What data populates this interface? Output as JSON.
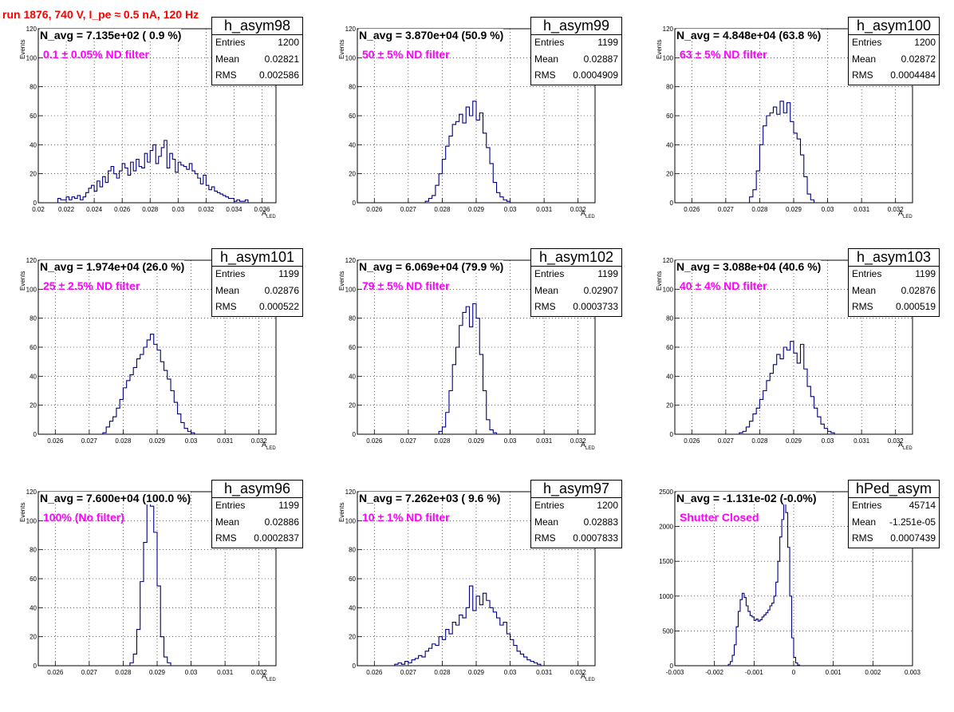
{
  "title": "run 1876,   740 V, I_pe ≈ 0.5 nA, 120 Hz",
  "stat_labels": {
    "entries": "Entries",
    "mean": "Mean",
    "rms": "RMS"
  },
  "colors": {
    "title": "#ff0000",
    "annotation": "#ff00ff",
    "histogram": "#00007f"
  },
  "chart_data": [
    {
      "type": "histogram",
      "name": "h_asym98",
      "navg": "N_avg = 7.135e+02 ( 0.9 %)",
      "filter": "0.1 ± 0.05% ND filter",
      "entries": "1200",
      "mean": "0.02821",
      "rms": "0.002586",
      "ylabel": "Events",
      "xlabel": "A",
      "xlabel_sub": "LED",
      "xlim": [
        0.02,
        0.037
      ],
      "ylim": [
        0,
        120
      ],
      "xticks": [
        "0.02",
        "0.022",
        "0.024",
        "0.026",
        "0.028",
        "0.03",
        "0.032",
        "0.034",
        "0.036"
      ],
      "xtick_values": [
        0.02,
        0.022,
        0.024,
        0.026,
        0.028,
        0.03,
        0.032,
        0.034,
        0.036
      ],
      "yticks": [
        "0",
        "20",
        "40",
        "60",
        "80",
        "100",
        "120"
      ],
      "bin_start": 0.0214,
      "bin_width": 0.0002,
      "counts": [
        3,
        2,
        2,
        4,
        2,
        4,
        3,
        5,
        2,
        4,
        7,
        10,
        12,
        8,
        15,
        11,
        18,
        14,
        22,
        25,
        20,
        17,
        22,
        27,
        24,
        19,
        28,
        22,
        30,
        25,
        24,
        34,
        28,
        36,
        40,
        27,
        32,
        38,
        43,
        24,
        34,
        30,
        21,
        28,
        26,
        25,
        23,
        27,
        22,
        20,
        17,
        13,
        19,
        12,
        9,
        11,
        8,
        7,
        6,
        5,
        4,
        3,
        3,
        1,
        2,
        1,
        1,
        2
      ]
    },
    {
      "type": "histogram",
      "name": "h_asym99",
      "navg": "N_avg = 3.870e+04 (50.9 %)",
      "filter": "50 ± 5% ND filter",
      "entries": "1199",
      "mean": "0.02887",
      "rms": "0.0004909",
      "ylabel": "Events",
      "xlabel": "A",
      "xlabel_sub": "LED",
      "xlim": [
        0.0255,
        0.0325
      ],
      "ylim": [
        0,
        120
      ],
      "xticks": [
        "0.026",
        "0.027",
        "0.028",
        "0.029",
        "0.03",
        "0.031",
        "0.032"
      ],
      "xtick_values": [
        0.026,
        0.027,
        0.028,
        0.029,
        0.03,
        0.031,
        0.032
      ],
      "yticks": [
        "0",
        "20",
        "40",
        "60",
        "80",
        "100",
        "120"
      ],
      "bin_start": 0.0275,
      "bin_width": 0.0001,
      "counts": [
        1,
        3,
        5,
        12,
        20,
        30,
        39,
        46,
        54,
        56,
        61,
        55,
        66,
        60,
        70,
        57,
        62,
        48,
        38,
        27,
        14,
        7,
        4,
        2,
        1
      ]
    },
    {
      "type": "histogram",
      "name": "h_asym100",
      "navg": "N_avg = 4.848e+04 (63.8 %)",
      "filter": "63 ± 5% ND filter",
      "entries": "1200",
      "mean": "0.02872",
      "rms": "0.0004484",
      "ylabel": "Events",
      "xlabel": "A",
      "xlabel_sub": "LED",
      "xlim": [
        0.0255,
        0.0325
      ],
      "ylim": [
        0,
        120
      ],
      "xticks": [
        "0.026",
        "0.027",
        "0.028",
        "0.029",
        "0.03",
        "0.031",
        "0.032"
      ],
      "xtick_values": [
        0.026,
        0.027,
        0.028,
        0.029,
        0.03,
        0.031,
        0.032
      ],
      "yticks": [
        "0",
        "20",
        "40",
        "60",
        "80",
        "100",
        "120"
      ],
      "bin_start": 0.0277,
      "bin_width": 0.0001,
      "counts": [
        4,
        9,
        22,
        40,
        53,
        60,
        62,
        66,
        61,
        70,
        62,
        69,
        56,
        48,
        44,
        33,
        18,
        6,
        2
      ]
    },
    {
      "type": "histogram",
      "name": "h_asym101",
      "navg": "N_avg = 1.974e+04 (26.0 %)",
      "filter": "25 ± 2.5% ND filter",
      "entries": "1199",
      "mean": "0.02876",
      "rms": "0.000522",
      "ylabel": "Events",
      "xlabel": "A",
      "xlabel_sub": "LED",
      "xlim": [
        0.0255,
        0.0325
      ],
      "ylim": [
        0,
        120
      ],
      "xticks": [
        "0.026",
        "0.027",
        "0.028",
        "0.029",
        "0.03",
        "0.031",
        "0.032"
      ],
      "xtick_values": [
        0.026,
        0.027,
        0.028,
        0.029,
        0.03,
        0.031,
        0.032
      ],
      "yticks": [
        "0",
        "20",
        "40",
        "60",
        "80",
        "100",
        "120"
      ],
      "bin_start": 0.0274,
      "bin_width": 0.0001,
      "counts": [
        1,
        5,
        9,
        12,
        18,
        24,
        32,
        37,
        41,
        46,
        52,
        55,
        60,
        65,
        69,
        62,
        58,
        50,
        44,
        38,
        30,
        22,
        14,
        8,
        4,
        2,
        1
      ]
    },
    {
      "type": "histogram",
      "name": "h_asym102",
      "navg": "N_avg = 6.069e+04 (79.9 %)",
      "filter": "79 ± 5% ND filter",
      "entries": "1199",
      "mean": "0.02907",
      "rms": "0.0003733",
      "ylabel": "Events",
      "xlabel": "A",
      "xlabel_sub": "LED",
      "xlim": [
        0.0255,
        0.0325
      ],
      "ylim": [
        0,
        120
      ],
      "xticks": [
        "0.026",
        "0.027",
        "0.028",
        "0.029",
        "0.03",
        "0.031",
        "0.032"
      ],
      "xtick_values": [
        0.026,
        0.027,
        0.028,
        0.029,
        0.03,
        0.031,
        0.032
      ],
      "yticks": [
        "0",
        "20",
        "40",
        "60",
        "80",
        "100",
        "120"
      ],
      "bin_start": 0.0279,
      "bin_width": 0.0001,
      "counts": [
        2,
        5,
        15,
        30,
        48,
        60,
        75,
        84,
        88,
        74,
        90,
        80,
        55,
        30,
        10,
        3,
        1
      ]
    },
    {
      "type": "histogram",
      "name": "h_asym103",
      "navg": "N_avg = 3.088e+04 (40.6 %)",
      "filter": "40 ± 4% ND filter",
      "entries": "1199",
      "mean": "0.02876",
      "rms": "0.000519",
      "ylabel": "Events",
      "xlabel": "A",
      "xlabel_sub": "LED",
      "xlim": [
        0.0255,
        0.0325
      ],
      "ylim": [
        0,
        120
      ],
      "xticks": [
        "0.026",
        "0.027",
        "0.028",
        "0.029",
        "0.03",
        "0.031",
        "0.032"
      ],
      "xtick_values": [
        0.026,
        0.027,
        0.028,
        0.029,
        0.03,
        0.031,
        0.032
      ],
      "yticks": [
        "0",
        "20",
        "40",
        "60",
        "80",
        "100",
        "120"
      ],
      "bin_start": 0.0274,
      "bin_width": 0.0001,
      "counts": [
        1,
        2,
        5,
        9,
        14,
        18,
        24,
        30,
        37,
        42,
        48,
        55,
        52,
        60,
        58,
        64,
        56,
        49,
        62,
        45,
        33,
        26,
        18,
        12,
        7,
        4,
        2,
        1
      ]
    },
    {
      "type": "histogram",
      "name": "h_asym96",
      "navg": "N_avg = 7.600e+04 (100.0 %)",
      "filter": "100% (No filter)",
      "entries": "1199",
      "mean": "0.02886",
      "rms": "0.0002837",
      "ylabel": "Events",
      "xlabel": "A",
      "xlabel_sub": "LED",
      "xlim": [
        0.0255,
        0.0325
      ],
      "ylim": [
        0,
        120
      ],
      "xticks": [
        "0.026",
        "0.027",
        "0.028",
        "0.029",
        "0.03",
        "0.031",
        "0.032"
      ],
      "xtick_values": [
        0.026,
        0.027,
        0.028,
        0.029,
        0.03,
        0.031,
        0.032
      ],
      "yticks": [
        "0",
        "20",
        "40",
        "60",
        "80",
        "100",
        "120"
      ],
      "bin_start": 0.0282,
      "bin_width": 0.0001,
      "counts": [
        2,
        8,
        25,
        58,
        85,
        118,
        110,
        92,
        55,
        20,
        6,
        2
      ]
    },
    {
      "type": "histogram",
      "name": "h_asym97",
      "navg": "N_avg = 7.262e+03 ( 9.6 %)",
      "filter": "10 ± 1% ND filter",
      "entries": "1200",
      "mean": "0.02883",
      "rms": "0.0007833",
      "ylabel": "Events",
      "xlabel": "A",
      "xlabel_sub": "LED",
      "xlim": [
        0.0255,
        0.0325
      ],
      "ylim": [
        0,
        120
      ],
      "xticks": [
        "0.026",
        "0.027",
        "0.028",
        "0.029",
        "0.03",
        "0.031",
        "0.032"
      ],
      "xtick_values": [
        0.026,
        0.027,
        0.028,
        0.029,
        0.03,
        0.031,
        0.032
      ],
      "yticks": [
        "0",
        "20",
        "40",
        "60",
        "80",
        "100",
        "120"
      ],
      "bin_start": 0.0266,
      "bin_width": 0.0001,
      "counts": [
        1,
        2,
        1,
        3,
        2,
        4,
        5,
        7,
        6,
        10,
        12,
        15,
        14,
        20,
        18,
        25,
        22,
        30,
        28,
        35,
        33,
        40,
        55,
        38,
        48,
        42,
        50,
        45,
        40,
        37,
        33,
        28,
        30,
        22,
        18,
        14,
        10,
        8,
        6,
        4,
        3,
        2,
        1
      ]
    },
    {
      "type": "histogram",
      "name": "hPed_asym",
      "navg": "N_avg = -1.131e-02 (-0.0%)",
      "filter": "Shutter Closed",
      "entries": "45714",
      "mean": "-1.251e-05",
      "rms": "0.0007439",
      "ylabel": "",
      "xlabel": "",
      "xlabel_sub": "",
      "xlim": [
        -0.003,
        0.003
      ],
      "ylim": [
        0,
        2500
      ],
      "xticks": [
        "-0.003",
        "-0.002",
        "-0.001",
        "0",
        "0.001",
        "0.002",
        "0.003"
      ],
      "xtick_values": [
        -0.003,
        -0.002,
        -0.001,
        0,
        0.001,
        0.002,
        0.003
      ],
      "yticks": [
        "0",
        "500",
        "1000",
        "1500",
        "2000",
        "2500"
      ],
      "bin_start": -0.00165,
      "bin_width": 5e-05,
      "counts": [
        20,
        60,
        150,
        300,
        560,
        780,
        950,
        1040,
        980,
        860,
        780,
        720,
        700,
        650,
        670,
        640,
        660,
        700,
        730,
        760,
        800,
        860,
        900,
        1000,
        1200,
        1500,
        1850,
        2100,
        2400,
        2200,
        1700,
        1000,
        400,
        120,
        40,
        10
      ]
    }
  ]
}
